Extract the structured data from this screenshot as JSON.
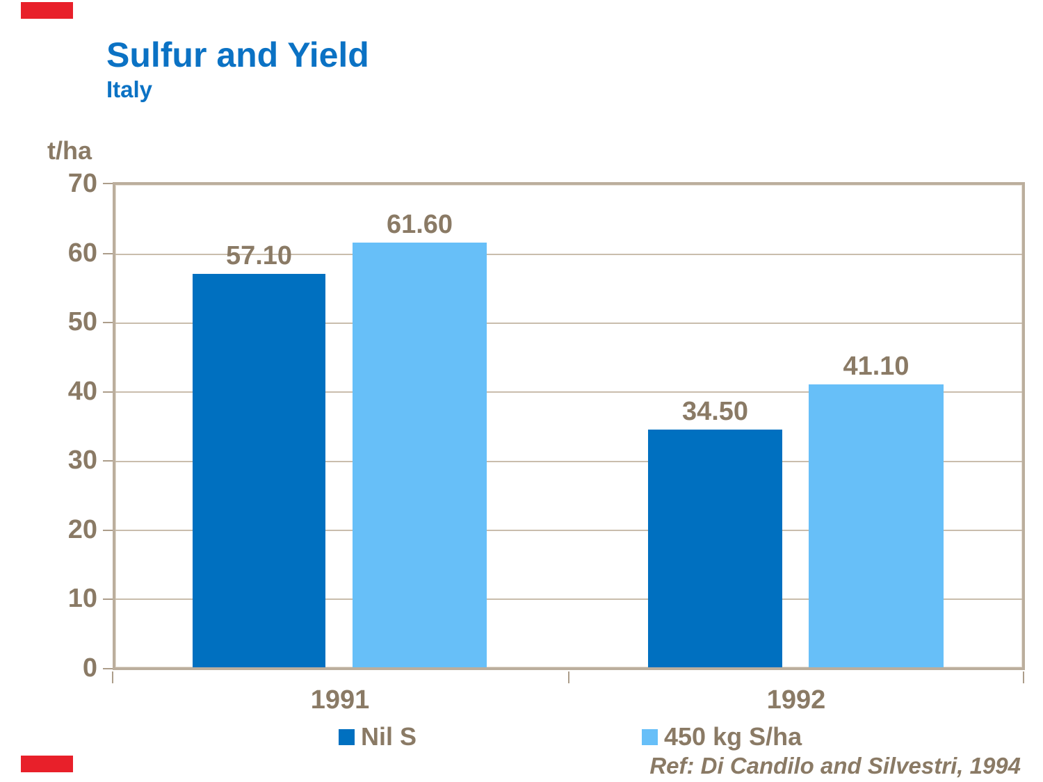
{
  "slide": {
    "title": "Sulfur and Yield",
    "subtitle": "Italy",
    "unit_label": "t/ha",
    "reference": "Ref: Di Candilo and Silvestri, 1994"
  },
  "colors": {
    "title_blue": "#0B72C4",
    "chart_text_taupe": "#8A7A65",
    "dark_bar_blue": "#0070C0",
    "light_bar_blue": "#67BFF8",
    "grid_tan": "#C9BDAC",
    "border_tan": "#BBAE9D",
    "corner_red": "#E8202A"
  },
  "chart_data": {
    "type": "bar",
    "title": "Sulfur and Yield",
    "subtitle": "Italy",
    "ylabel": "t/ha",
    "xlabel": "",
    "categories": [
      "1991",
      "1992"
    ],
    "series": [
      {
        "name": "Nil S",
        "color": "#0070C0",
        "values": [
          57.1,
          34.5
        ],
        "value_labels": [
          "57.10",
          "34.50"
        ]
      },
      {
        "name": "450 kg S/ha",
        "color": "#67BFF8",
        "values": [
          61.6,
          41.1
        ],
        "value_labels": [
          "61.60",
          "41.10"
        ]
      }
    ],
    "ylim": [
      0,
      70
    ],
    "y_tick_step": 10,
    "y_ticks": [
      "70",
      "60",
      "50",
      "40",
      "30",
      "20",
      "10",
      "0"
    ],
    "grid": "horizontal",
    "legend_position": "bottom",
    "annotation": "Ref: Di Candilo and Silvestri, 1994"
  }
}
